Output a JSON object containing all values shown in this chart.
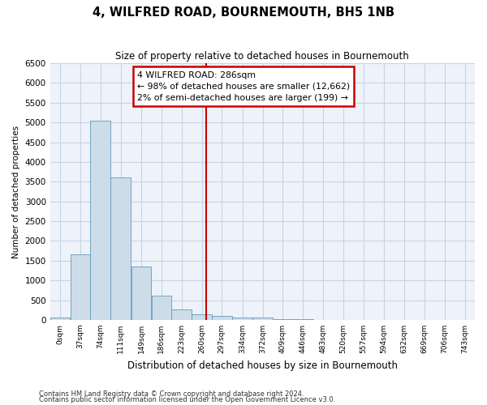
{
  "title": "4, WILFRED ROAD, BOURNEMOUTH, BH5 1NB",
  "subtitle": "Size of property relative to detached houses in Bournemouth",
  "xlabel": "Distribution of detached houses by size in Bournemouth",
  "ylabel": "Number of detached properties",
  "footnote1": "Contains HM Land Registry data © Crown copyright and database right 2024.",
  "footnote2": "Contains public sector information licensed under the Open Government Licence v3.0.",
  "bar_color": "#ccdce8",
  "bar_edge_color": "#6699bb",
  "grid_color": "#c8d4e4",
  "bg_color": "#eef2fa",
  "vline_x": 286,
  "vline_color": "#cc0000",
  "annotation_line1": "4 WILFRED ROAD: 286sqm",
  "annotation_line2": "← 98% of detached houses are smaller (12,662)",
  "annotation_line3": "2% of semi-detached houses are larger (199) →",
  "annotation_box_color": "#cc0000",
  "bin_edges": [
    0,
    37,
    74,
    111,
    149,
    186,
    223,
    260,
    297,
    334,
    372,
    409,
    446,
    483,
    520,
    557,
    594,
    632,
    669,
    706,
    743
  ],
  "bin_labels": [
    "0sqm",
    "37sqm",
    "74sqm",
    "111sqm",
    "149sqm",
    "186sqm",
    "223sqm",
    "260sqm",
    "297sqm",
    "334sqm",
    "372sqm",
    "409sqm",
    "446sqm",
    "483sqm",
    "520sqm",
    "557sqm",
    "594sqm",
    "632sqm",
    "669sqm",
    "706sqm",
    "743sqm"
  ],
  "counts": [
    50,
    1650,
    5050,
    3600,
    1350,
    620,
    265,
    135,
    100,
    55,
    55,
    10,
    10,
    5,
    3,
    3,
    2,
    1,
    1,
    1
  ],
  "ylim": [
    0,
    6500
  ],
  "yticks": [
    0,
    500,
    1000,
    1500,
    2000,
    2500,
    3000,
    3500,
    4000,
    4500,
    5000,
    5500,
    6000,
    6500
  ]
}
